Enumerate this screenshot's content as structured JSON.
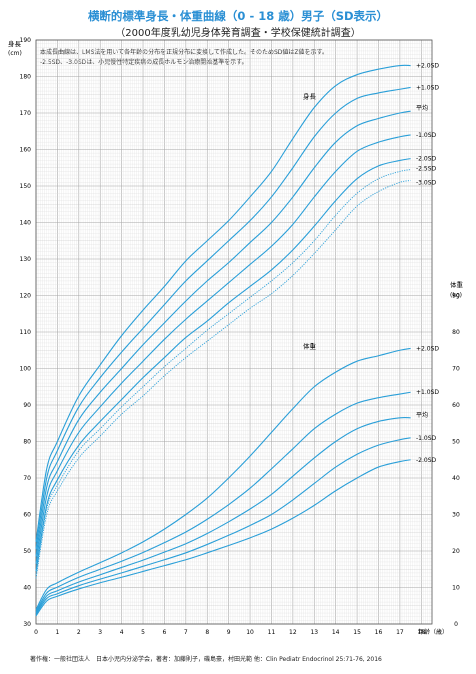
{
  "header": {
    "title": "横断的標準身長・体重曲線（0 - 18 歳）男子（SD表示）",
    "subtitle": "（2000年度乳幼児身体発育調査・学校保健統計調査）",
    "note_1": "本成長曲線は、LMS法を用いて各年齢の分布を正規分布に変換して作成した。そのためSD値はZ値を示す。",
    "note_2": "-2.5SD、-3.0SDは、小児慢性特定疾病の成長ホルモン治療開始基準を示す。"
  },
  "footer": {
    "credit": "著作権：一般社団法人　日本小児内分泌学会，著者：加藤則子，磯島豪，村田光範 他：Clin Pediatr Endocrinol 25:71-76, 2016"
  },
  "chart_data": [
    {
      "type": "line",
      "name": "身長",
      "label": "身長",
      "ylabel": "身長",
      "yunit": "(cm)",
      "xlabel": "年齢（歳）",
      "xlim": [
        0,
        18.5
      ],
      "ylim": [
        30,
        190
      ],
      "x": [
        0,
        0.5,
        1,
        2,
        3,
        4,
        5,
        6,
        7,
        8,
        9,
        10,
        11,
        12,
        13,
        14,
        15,
        16,
        17,
        17.5
      ],
      "series": [
        {
          "name": "+2.0SD",
          "style": "solid",
          "values": [
            52.5,
            72.5,
            80,
            92.5,
            101,
            109,
            116,
            122.5,
            129.5,
            135,
            140.5,
            147,
            154,
            163,
            171.5,
            177.5,
            180.5,
            182,
            183,
            183
          ]
        },
        {
          "name": "+1.0SD",
          "style": "solid",
          "values": [
            50.5,
            70,
            77.5,
            89.5,
            97.5,
            104.5,
            111,
            117.5,
            124,
            129.5,
            135,
            140.5,
            147,
            155,
            163.5,
            170,
            174,
            175.5,
            176.5,
            177
          ]
        },
        {
          "name": "平均",
          "style": "solid",
          "values": [
            48.5,
            67.5,
            74.5,
            86,
            93.5,
            100,
            106.5,
            112.5,
            118.5,
            124,
            129,
            134.5,
            140,
            147,
            155,
            162,
            166.5,
            168.5,
            170,
            170.5
          ]
        },
        {
          "name": "-1.0SD",
          "style": "solid",
          "values": [
            46.5,
            65,
            72,
            82.5,
            89.5,
            96,
            102,
            108,
            113.5,
            118.5,
            123.5,
            128.5,
            133.5,
            139.5,
            147,
            154,
            159.5,
            162,
            163.5,
            164
          ]
        },
        {
          "name": "-2.0SD",
          "style": "solid",
          "values": [
            44.5,
            62.5,
            69.5,
            79,
            85.5,
            91.5,
            97.5,
            103,
            108.5,
            113,
            118,
            122.5,
            127,
            132.5,
            139,
            146,
            152,
            155.5,
            157,
            157.5
          ]
        },
        {
          "name": "-2.5SD",
          "style": "dotted",
          "values": [
            43.5,
            61.5,
            68,
            77.5,
            83.5,
            89.5,
            95,
            100.5,
            105.5,
            110.5,
            115,
            119.5,
            124,
            129,
            135,
            142,
            148,
            152,
            154,
            154.5
          ]
        },
        {
          "name": "-3.0SD",
          "style": "dotted",
          "values": [
            42.5,
            60,
            66.5,
            75.5,
            81.5,
            87.5,
            92.5,
            98,
            103,
            107.5,
            112,
            116.5,
            120.5,
            125.5,
            131.5,
            138,
            144.5,
            148.5,
            151,
            151.5
          ]
        }
      ]
    },
    {
      "type": "line",
      "name": "体重",
      "label": "体重",
      "ylabel": "体重",
      "yunit": "(kg)",
      "xlabel": "年齢（歳）",
      "xlim": [
        0,
        18.5
      ],
      "ylim": [
        0,
        90
      ],
      "x": [
        0,
        0.5,
        1,
        2,
        3,
        4,
        5,
        6,
        7,
        8,
        9,
        10,
        11,
        12,
        13,
        14,
        15,
        16,
        17,
        17.5
      ],
      "series": [
        {
          "name": "+2.0SD",
          "style": "solid",
          "values": [
            3.9,
            9.5,
            11.3,
            14.2,
            16.8,
            19.5,
            22.5,
            26,
            30,
            34.5,
            40,
            46,
            52.5,
            59,
            65,
            69,
            72,
            73.5,
            75,
            75.5
          ]
        },
        {
          "name": "+1.0SD",
          "style": "solid",
          "values": [
            3.4,
            8.5,
            10.1,
            12.8,
            15,
            17.2,
            19.6,
            22.3,
            25.2,
            28.7,
            32.7,
            37.2,
            42.5,
            48,
            53.5,
            57.5,
            60.5,
            62,
            63,
            63.5
          ]
        },
        {
          "name": "平均",
          "style": "solid",
          "values": [
            3,
            7.7,
            9.1,
            11.5,
            13.5,
            15.5,
            17.5,
            19.7,
            22,
            24.8,
            28,
            31.5,
            35.5,
            40.5,
            45.5,
            50,
            53.5,
            55.5,
            56.5,
            56.5
          ]
        },
        {
          "name": "-1.0SD",
          "style": "solid",
          "values": [
            2.6,
            7,
            8.3,
            10.5,
            12.3,
            14,
            15.8,
            17.6,
            19.5,
            21.8,
            24.3,
            27,
            30,
            34,
            38.5,
            43,
            46.5,
            49,
            50.5,
            51
          ]
        },
        {
          "name": "-2.0SD",
          "style": "solid",
          "values": [
            2.2,
            6.3,
            7.6,
            9.6,
            11.3,
            12.8,
            14.4,
            16,
            17.6,
            19.5,
            21.5,
            23.6,
            26,
            29,
            32.5,
            36.5,
            40,
            43,
            44.5,
            45
          ]
        }
      ]
    }
  ],
  "axes": {
    "x_ticks": [
      "0",
      "1",
      "2",
      "3",
      "4",
      "5",
      "6",
      "7",
      "8",
      "9",
      "10",
      "11",
      "12",
      "13",
      "14",
      "15",
      "16",
      "17",
      "18"
    ],
    "height_ticks": [
      "30",
      "40",
      "50",
      "60",
      "70",
      "80",
      "90",
      "100",
      "110",
      "120",
      "130",
      "140",
      "150",
      "160",
      "170",
      "180",
      "190"
    ],
    "weight_ticks": [
      "0",
      "10",
      "20",
      "30",
      "40",
      "50",
      "60",
      "70",
      "80",
      "90"
    ]
  },
  "colors": {
    "curve": "#2a9fd8",
    "grid_minor": "#dddddd",
    "grid_major": "#a8a8a8",
    "title": "#2a8fd4"
  }
}
